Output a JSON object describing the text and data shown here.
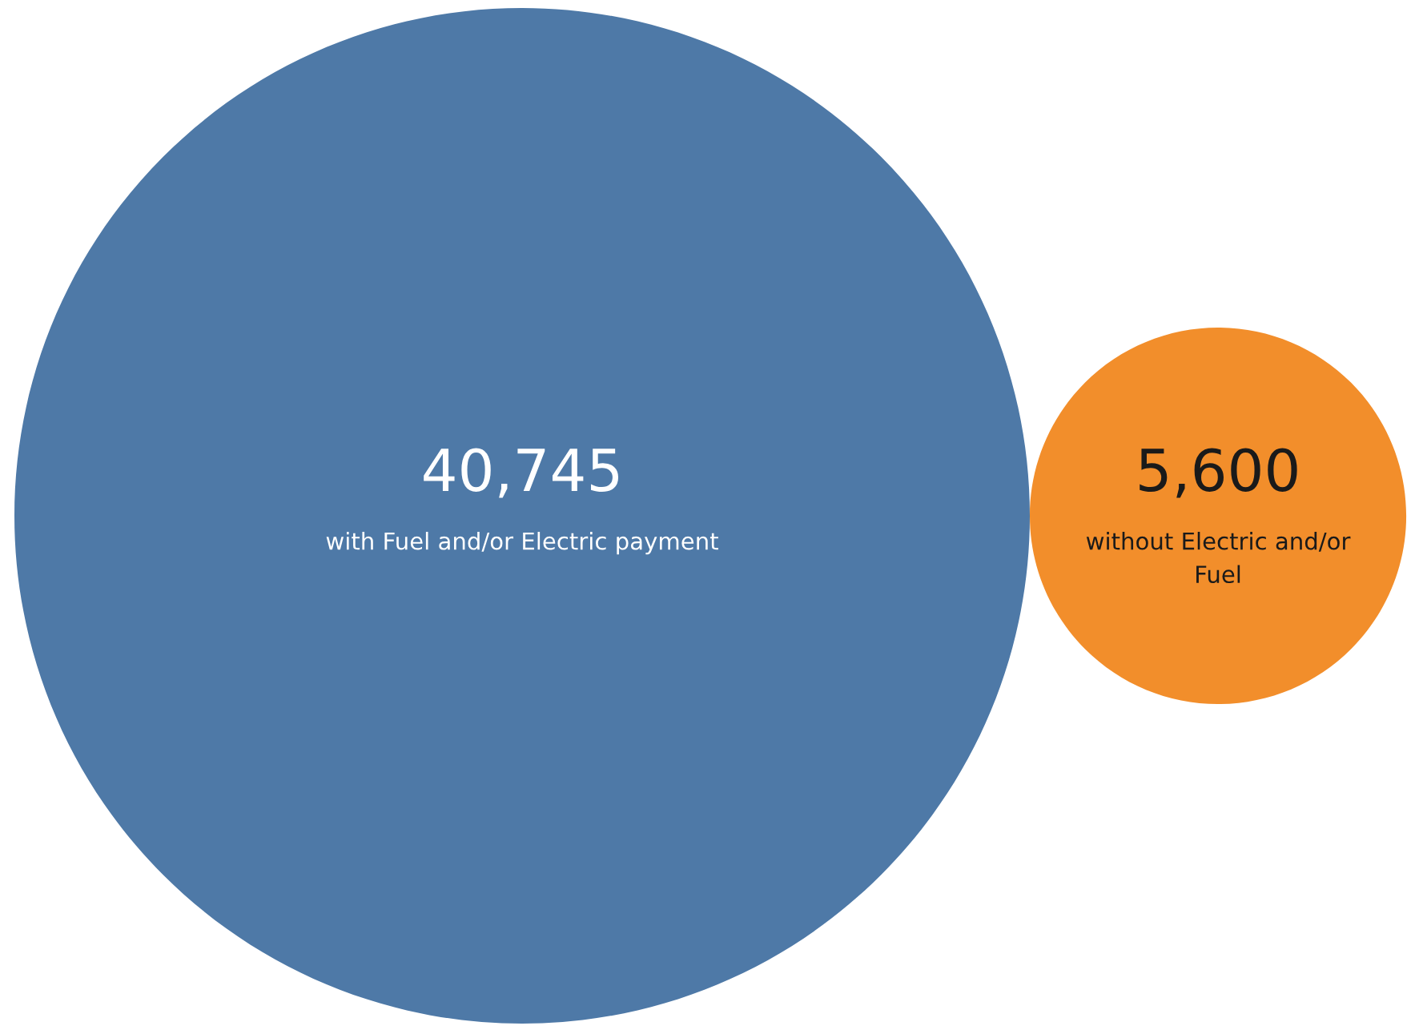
{
  "chart_data": {
    "type": "other",
    "categories": [
      "with Fuel and/or Electric payment",
      "without Electric and/or Fuel"
    ],
    "values": [
      40745,
      5600
    ],
    "value_labels": [
      "40,745",
      "5,600"
    ],
    "colors": [
      "#4e79a7",
      "#f28e2b"
    ]
  }
}
